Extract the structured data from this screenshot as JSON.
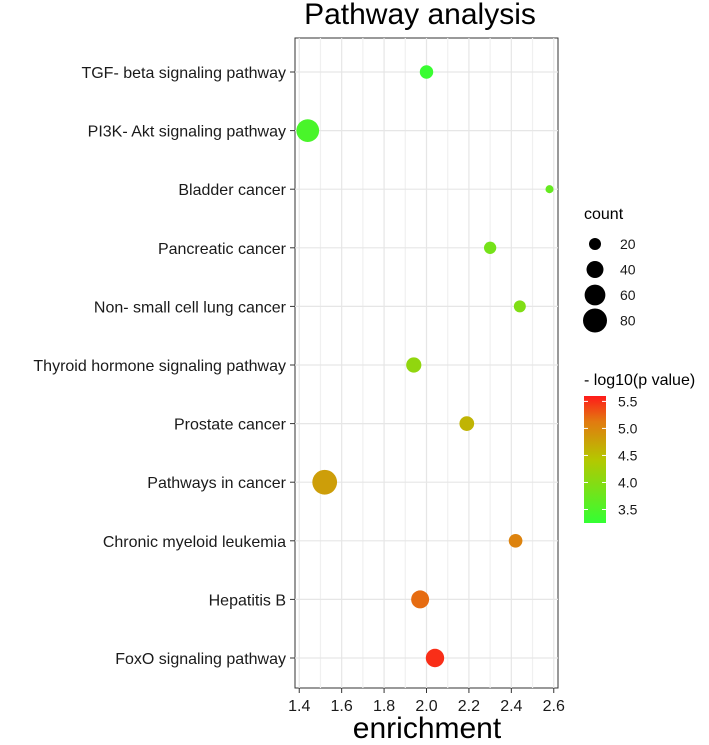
{
  "chart_data": {
    "type": "scatter",
    "title": "Pathway analysis",
    "xlabel": "enrichment",
    "ylabel": "",
    "xlim": [
      1.38,
      2.62
    ],
    "xticks": [
      1.4,
      1.6,
      1.8,
      2.0,
      2.2,
      2.4,
      2.6
    ],
    "xtick_labels": [
      "1.4",
      "1.6",
      "1.8",
      "2.0",
      "2.2",
      "2.4",
      "2.6"
    ],
    "grid": true,
    "categories": [
      "TGF- beta signaling pathway",
      "PI3K- Akt signaling pathway",
      "Bladder cancer",
      "Pancreatic cancer",
      "Non- small cell lung cancer",
      "Thyroid hormone signaling pathway",
      "Prostate cancer",
      "Pathways in cancer",
      "Chronic myeloid leukemia",
      "Hepatitis B",
      "FoxO signaling pathway"
    ],
    "points": [
      {
        "category": "TGF- beta signaling pathway",
        "enrichment": 2.0,
        "count": 25,
        "neg_log10_p": 3.3
      },
      {
        "category": "PI3K- Akt signaling pathway",
        "enrichment": 1.44,
        "count": 72,
        "neg_log10_p": 3.45
      },
      {
        "category": "Bladder cancer",
        "enrichment": 2.58,
        "count": 9,
        "neg_log10_p": 3.7
      },
      {
        "category": "Pancreatic cancer",
        "enrichment": 2.3,
        "count": 21,
        "neg_log10_p": 3.85
      },
      {
        "category": "Non- small cell lung cancer",
        "enrichment": 2.44,
        "count": 20,
        "neg_log10_p": 3.95
      },
      {
        "category": "Thyroid hormone signaling pathway",
        "enrichment": 1.94,
        "count": 32,
        "neg_log10_p": 4.1
      },
      {
        "category": "Prostate cancer",
        "enrichment": 2.19,
        "count": 30,
        "neg_log10_p": 4.6
      },
      {
        "category": "Pathways in cancer",
        "enrichment": 1.52,
        "count": 85,
        "neg_log10_p": 4.8
      },
      {
        "category": "Chronic myeloid leukemia",
        "enrichment": 2.42,
        "count": 26,
        "neg_log10_p": 5.05
      },
      {
        "category": "Hepatitis B",
        "enrichment": 1.97,
        "count": 45,
        "neg_log10_p": 5.2
      },
      {
        "category": "FoxO signaling pathway",
        "enrichment": 2.04,
        "count": 47,
        "neg_log10_p": 5.5
      }
    ],
    "size_legend": {
      "title": "count",
      "values": [
        20,
        40,
        60,
        80
      ],
      "labels": [
        "20",
        "40",
        "60",
        "80"
      ]
    },
    "color_legend": {
      "title": "- log10(p value)",
      "range": [
        3.25,
        5.6
      ],
      "ticks": [
        3.5,
        4.0,
        4.5,
        5.0,
        5.5
      ],
      "labels": [
        "3.5",
        "4.0",
        "4.5",
        "5.0",
        "5.5"
      ],
      "low_color": "#33ff33",
      "high_color": "#ff1a1a"
    }
  }
}
